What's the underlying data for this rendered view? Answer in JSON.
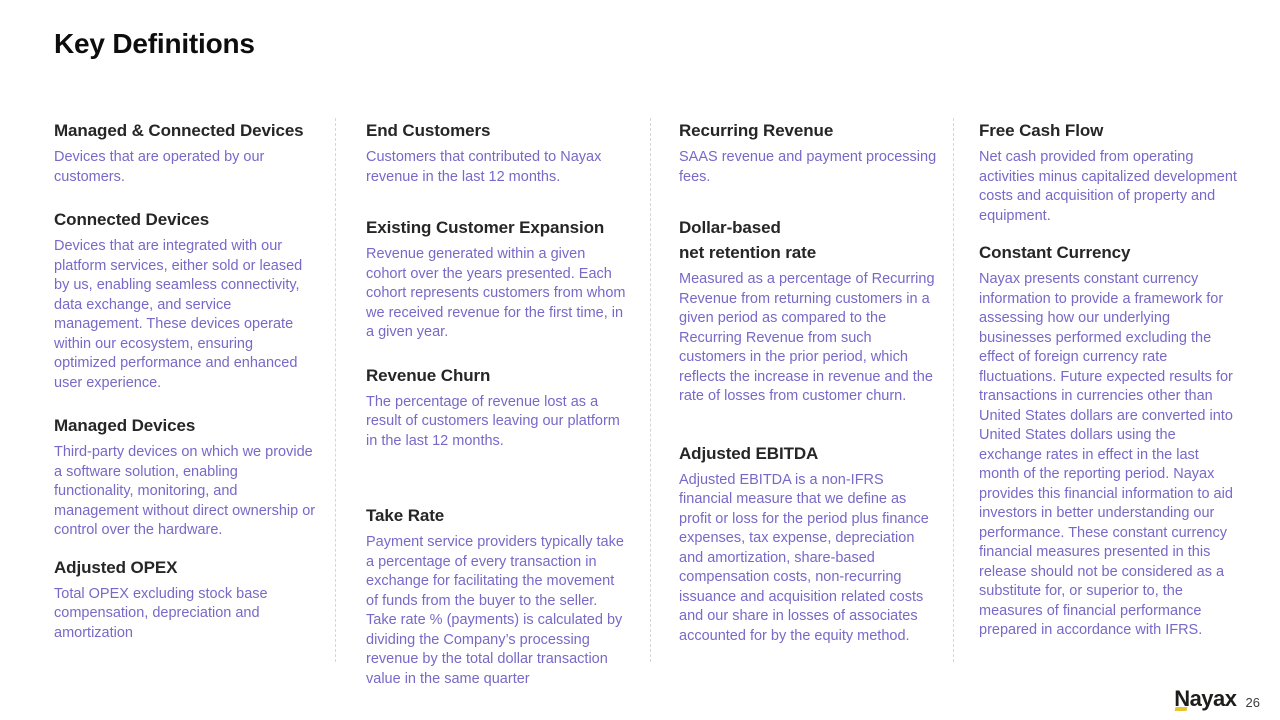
{
  "slide": {
    "title": "Key Definitions",
    "logo_text": "Nayax",
    "page_number": "26"
  },
  "colors": {
    "heading_text": "#262626",
    "body_text": "#7769c8",
    "divider": "#d6d6d6",
    "logo_dark": "#1d1d1b",
    "logo_accent_yellow": "#e9c431"
  },
  "columns": [
    {
      "items": [
        {
          "term": "Managed & Connected Devices",
          "definition": "Devices that are operated by our customers."
        },
        {
          "term": "Connected Devices",
          "definition": "Devices that are integrated with our platform services, either sold or leased by us, enabling seamless connectivity, data exchange, and service management. These devices operate within our ecosystem, ensuring optimized performance and enhanced user experience."
        },
        {
          "term": "Managed Devices",
          "definition": "Third-party devices on which we provide a software solution, enabling functionality, monitoring, and management without direct ownership or control over the hardware."
        },
        {
          "term": "Adjusted OPEX",
          "definition": "Total OPEX excluding stock base compensation, depreciation and amortization"
        }
      ]
    },
    {
      "items": [
        {
          "term": "End Customers",
          "definition": "Customers that contributed to Nayax revenue in the last 12 months."
        },
        {
          "term": "Existing Customer Expansion",
          "definition": "Revenue generated within a given cohort over the years presented. Each cohort represents customers from whom we received revenue for the first time, in a given year."
        },
        {
          "term": "Revenue Churn",
          "definition": "The percentage of revenue lost as a result of customers leaving our platform in the last 12 months."
        },
        {
          "term": "Take Rate",
          "definition": "Payment service providers typically take a percentage of every transaction in exchange for facilitating the movement of funds from the buyer to the seller. Take rate % (payments) is calculated by dividing the Company’s processing revenue by the total dollar transaction value in the same quarter"
        }
      ]
    },
    {
      "items": [
        {
          "term": "Recurring Revenue",
          "definition": "SAAS revenue and payment processing fees."
        },
        {
          "term": "Dollar-based\nnet retention rate",
          "definition": "Measured as a percentage of Recurring Revenue from returning customers in a given period as compared to the Recurring Revenue from such customers in the prior period, which reflects the increase in revenue and the rate of losses from customer churn."
        },
        {
          "term": "Adjusted EBITDA",
          "definition": "Adjusted EBITDA is a non-IFRS financial measure that we define as profit or loss for the period plus finance expenses, tax expense, depreciation and amortization, share-based compensation costs, non-recurring issuance and acquisition related costs and our share in losses of associates accounted for by the equity method."
        }
      ]
    },
    {
      "items": [
        {
          "term": "Free Cash Flow",
          "definition": "Net cash provided from operating activities minus capitalized development costs and acquisition of property and equipment."
        },
        {
          "term": "Constant Currency",
          "definition": "Nayax presents constant currency information to provide a framework for assessing how our underlying businesses performed excluding the effect of foreign currency rate fluctuations. Future expected results for transactions in currencies other than United States dollars are converted into United States dollars using the exchange rates in effect in the last month of the reporting period. Nayax provides this financial information to aid investors in better understanding our performance. These constant currency financial measures presented in this release should not be considered as a substitute for, or superior to, the measures of financial performance prepared in accordance with IFRS."
        }
      ]
    }
  ]
}
